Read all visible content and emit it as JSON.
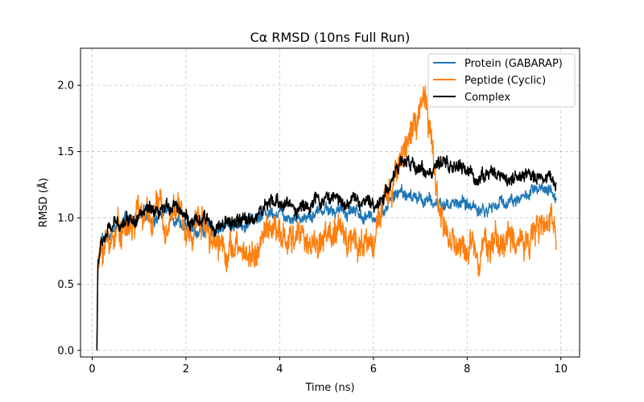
{
  "chart_data": {
    "type": "line",
    "title": "Cα RMSD (10ns Full Run)",
    "xlabel": "Time (ns)",
    "ylabel": "RMSD (Å)",
    "xlim": [
      -0.25,
      10.4
    ],
    "ylim": [
      -0.05,
      2.28
    ],
    "xticks": [
      0,
      2,
      4,
      6,
      8,
      10
    ],
    "yticks": [
      0.0,
      0.5,
      1.0,
      1.5,
      2.0
    ],
    "xtick_labels": [
      "0",
      "2",
      "4",
      "6",
      "8",
      "10"
    ],
    "ytick_labels": [
      "0.0",
      "0.5",
      "1.0",
      "1.5",
      "2.0"
    ],
    "grid": true,
    "legend_loc": "top-right",
    "series": [
      {
        "name": "Protein (GABARAP)",
        "color": "#1f77b4",
        "x": [
          0.1,
          0.12,
          0.2,
          0.4,
          0.6,
          0.8,
          1.0,
          1.2,
          1.4,
          1.6,
          1.8,
          2.0,
          2.2,
          2.4,
          2.6,
          2.8,
          3.0,
          3.2,
          3.4,
          3.6,
          3.8,
          4.0,
          4.2,
          4.4,
          4.6,
          4.8,
          5.0,
          5.2,
          5.4,
          5.6,
          5.8,
          6.0,
          6.2,
          6.4,
          6.6,
          6.8,
          7.0,
          7.2,
          7.4,
          7.6,
          7.8,
          8.0,
          8.2,
          8.4,
          8.6,
          8.8,
          9.0,
          9.2,
          9.4,
          9.6,
          9.8,
          9.9
        ],
        "y": [
          0.0,
          0.65,
          0.82,
          0.9,
          0.95,
          0.97,
          1.0,
          1.02,
          1.0,
          1.05,
          1.0,
          0.92,
          0.9,
          0.92,
          0.92,
          0.93,
          0.95,
          0.95,
          0.97,
          1.02,
          1.05,
          1.05,
          1.02,
          1.0,
          1.02,
          1.05,
          1.08,
          1.05,
          1.05,
          1.07,
          1.0,
          1.0,
          1.05,
          1.15,
          1.2,
          1.15,
          1.15,
          1.12,
          1.1,
          1.1,
          1.12,
          1.1,
          1.08,
          1.05,
          1.1,
          1.12,
          1.15,
          1.15,
          1.2,
          1.2,
          1.18,
          1.15
        ]
      },
      {
        "name": "Peptide (Cyclic)",
        "color": "#ff7f0e",
        "x": [
          0.1,
          0.12,
          0.2,
          0.4,
          0.6,
          0.8,
          1.0,
          1.2,
          1.4,
          1.6,
          1.8,
          2.0,
          2.2,
          2.4,
          2.6,
          2.8,
          3.0,
          3.2,
          3.4,
          3.6,
          3.8,
          4.0,
          4.2,
          4.4,
          4.6,
          4.8,
          5.0,
          5.2,
          5.4,
          5.6,
          5.8,
          6.0,
          6.2,
          6.4,
          6.6,
          6.8,
          7.0,
          7.1,
          7.2,
          7.4,
          7.6,
          7.8,
          8.0,
          8.2,
          8.4,
          8.6,
          8.8,
          9.0,
          9.2,
          9.4,
          9.6,
          9.8,
          9.9
        ],
        "y": [
          0.0,
          0.6,
          0.78,
          0.85,
          0.95,
          0.9,
          1.05,
          0.95,
          1.1,
          0.95,
          1.15,
          0.85,
          0.95,
          1.0,
          0.85,
          0.8,
          0.75,
          0.75,
          0.72,
          0.8,
          0.95,
          0.85,
          0.8,
          0.9,
          0.82,
          0.8,
          0.88,
          0.85,
          0.88,
          0.85,
          0.8,
          0.85,
          1.05,
          1.2,
          1.5,
          1.65,
          1.75,
          1.9,
          1.65,
          1.1,
          0.85,
          0.75,
          0.8,
          0.78,
          0.82,
          0.8,
          0.85,
          0.8,
          0.85,
          0.9,
          0.9,
          0.95,
          0.92
        ]
      },
      {
        "name": "Complex",
        "color": "#000000",
        "x": [
          0.1,
          0.12,
          0.2,
          0.4,
          0.6,
          0.8,
          1.0,
          1.2,
          1.4,
          1.6,
          1.8,
          2.0,
          2.2,
          2.4,
          2.6,
          2.8,
          3.0,
          3.2,
          3.4,
          3.6,
          3.8,
          4.0,
          4.2,
          4.4,
          4.6,
          4.8,
          5.0,
          5.2,
          5.4,
          5.6,
          5.8,
          6.0,
          6.2,
          6.4,
          6.6,
          6.8,
          7.0,
          7.2,
          7.4,
          7.6,
          7.8,
          8.0,
          8.2,
          8.4,
          8.6,
          8.8,
          9.0,
          9.2,
          9.4,
          9.6,
          9.8,
          9.9
        ],
        "y": [
          0.0,
          0.65,
          0.82,
          0.92,
          0.97,
          1.0,
          1.02,
          1.05,
          1.0,
          1.08,
          1.12,
          1.0,
          0.95,
          0.98,
          0.95,
          0.93,
          0.97,
          0.97,
          1.0,
          1.05,
          1.1,
          1.12,
          1.1,
          1.07,
          1.1,
          1.12,
          1.15,
          1.15,
          1.12,
          1.15,
          1.1,
          1.1,
          1.15,
          1.3,
          1.42,
          1.4,
          1.38,
          1.35,
          1.38,
          1.4,
          1.38,
          1.35,
          1.3,
          1.32,
          1.35,
          1.3,
          1.3,
          1.3,
          1.32,
          1.32,
          1.3,
          1.25
        ]
      }
    ]
  }
}
